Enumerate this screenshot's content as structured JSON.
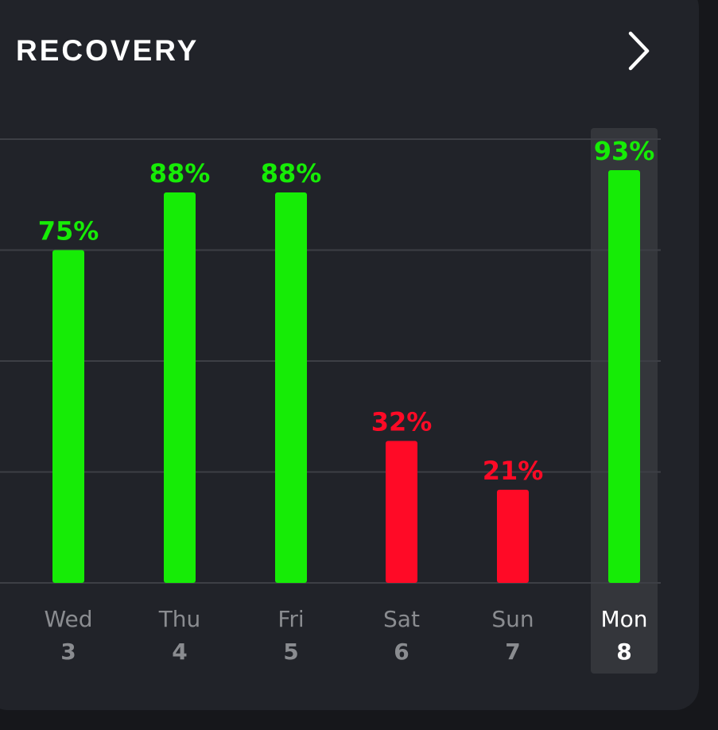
{
  "header": {
    "title": "RECOVERY",
    "next_icon": "chevron-right-icon"
  },
  "colors": {
    "card_background": "#212329",
    "page_background": "#16171b",
    "gridline": "#3d3f45",
    "green": "#16ec06",
    "red": "#ff0a26",
    "day_label": "#8a8c90",
    "selected_label": "#ffffff",
    "selected_highlight": "#34363b"
  },
  "chart_data": {
    "type": "bar",
    "title": "RECOVERY",
    "xlabel": "",
    "ylabel": "",
    "ylim": [
      0,
      100
    ],
    "grid": true,
    "unit": "%",
    "selected_index": 5,
    "categories": [
      {
        "day": "Wed",
        "date": "3"
      },
      {
        "day": "Thu",
        "date": "4"
      },
      {
        "day": "Fri",
        "date": "5"
      },
      {
        "day": "Sat",
        "date": "6"
      },
      {
        "day": "Sun",
        "date": "7"
      },
      {
        "day": "Mon",
        "date": "8"
      }
    ],
    "values": [
      75,
      88,
      88,
      32,
      21,
      93
    ],
    "labels": [
      "75%",
      "88%",
      "88%",
      "32%",
      "21%",
      "93%"
    ],
    "status": [
      "green",
      "green",
      "green",
      "red",
      "red",
      "green"
    ]
  }
}
